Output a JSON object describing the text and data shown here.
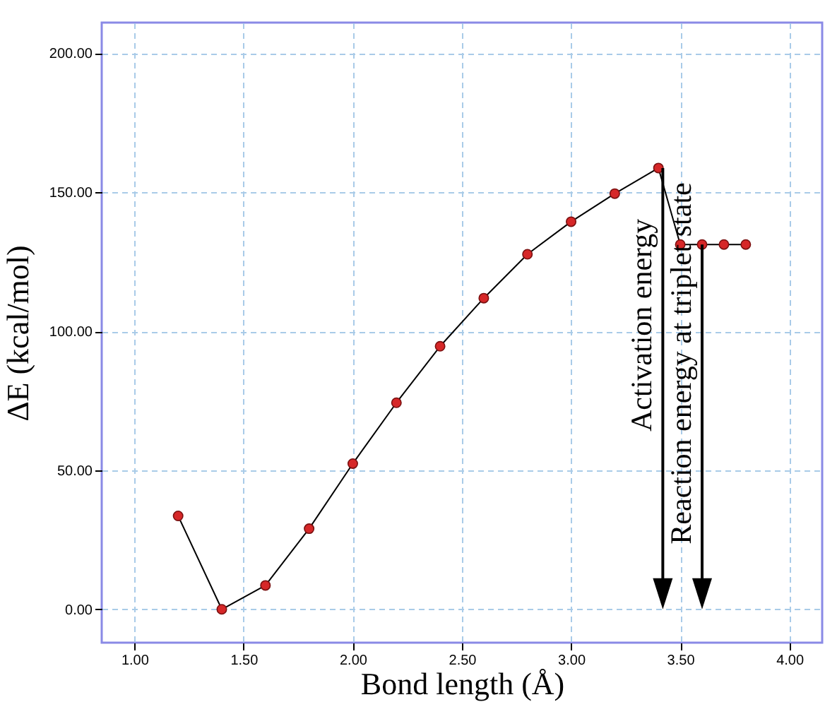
{
  "chart_data": {
    "type": "line",
    "xlabel": "Bond length (Å)",
    "ylabel": "ΔE (kcal/mol)",
    "x": [
      1.2,
      1.4,
      1.6,
      1.8,
      2.0,
      2.2,
      2.4,
      2.6,
      2.8,
      3.0,
      3.2,
      3.4,
      3.5,
      3.6,
      3.7,
      3.8
    ],
    "series": [
      {
        "color": "#d62728",
        "values": [
          33.6,
          0,
          8.6,
          29,
          52.4,
          74.3,
          94.6,
          111.9,
          127.7,
          139.4,
          149.5,
          158.7,
          131.2,
          131.2,
          131.2,
          131.2
        ]
      }
    ],
    "xlim": [
      0.85,
      4.15
    ],
    "ylim": [
      -12,
      211
    ],
    "xticks": [
      {
        "value": 1,
        "label": "1.00"
      },
      {
        "value": 1.5,
        "label": "1.50"
      },
      {
        "value": 2,
        "label": "2.00"
      },
      {
        "value": 2.5,
        "label": "2.50"
      },
      {
        "value": 3,
        "label": "3.00"
      },
      {
        "value": 3.5,
        "label": "3.50"
      },
      {
        "value": 4,
        "label": "4.00"
      }
    ],
    "yticks": [
      {
        "value": 0,
        "label": "0.00"
      },
      {
        "value": 50,
        "label": "50.00"
      },
      {
        "value": 100,
        "label": "100.00"
      },
      {
        "value": 150,
        "label": "150.00"
      },
      {
        "value": 200,
        "label": "200.00"
      }
    ],
    "grid": true,
    "marker": "circle",
    "line_style": "solid",
    "annotations": [
      {
        "text": "Activation energy",
        "x": 3.42,
        "y": 158.7
      },
      {
        "text": "Reaction energy at triplet state",
        "x": 3.6,
        "y": 131.2
      }
    ]
  }
}
